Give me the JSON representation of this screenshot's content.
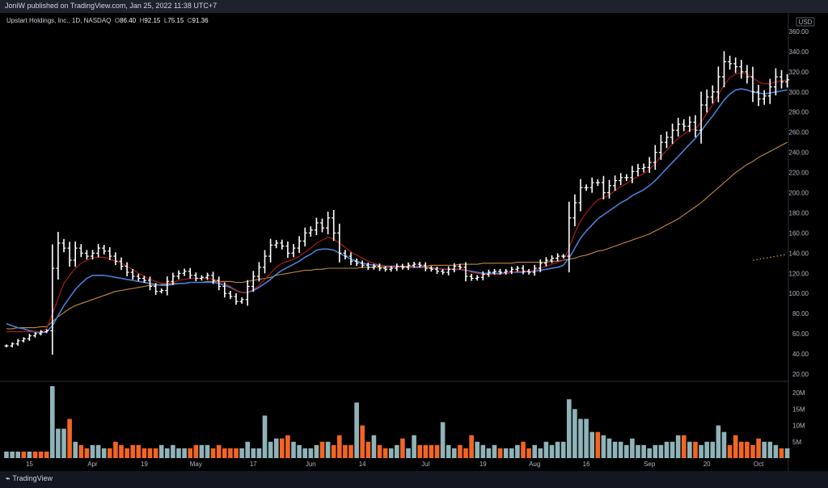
{
  "header": {
    "published_text": "JoniW published on TradingView.com, Jan 25, 2022 11:38 UTC+7"
  },
  "legend": {
    "symbol": "Upstart Holdings, Inc., 1D, NASDAQ",
    "open_label": "O",
    "open": "86.40",
    "high_label": "H",
    "high": "92.15",
    "low_label": "L",
    "low": "75.15",
    "close_label": "C",
    "close": "91.36"
  },
  "currency_badge": "USD",
  "footer": {
    "brand": "TradingView",
    "brand_icon": "tradingview-logo-icon"
  },
  "colors": {
    "background": "#000000",
    "bar": "#ffffff",
    "ema_short": "#b71c1c",
    "ema_mid": "#4a7fd4",
    "sma_long": "#c28a3c",
    "volume_up": "#8fb3b8",
    "volume_down": "#f26522",
    "axis_text": "#b2b5be"
  },
  "chart_data": {
    "type": "ohlc",
    "title": "Upstart Holdings, Inc., 1D, NASDAQ",
    "ylim": [
      20,
      380
    ],
    "y_ticks": [
      "380.00",
      "360.00",
      "340.00",
      "320.00",
      "300.00",
      "280.00",
      "260.00",
      "240.00",
      "220.00",
      "200.00",
      "180.00",
      "160.00",
      "140.00",
      "120.00",
      "100.00",
      "80.00",
      "60.00",
      "40.00",
      "20.00"
    ],
    "y_tick_values": [
      380,
      360,
      340,
      320,
      300,
      280,
      260,
      240,
      220,
      200,
      180,
      160,
      140,
      120,
      100,
      80,
      60,
      40,
      20
    ],
    "x_ticks": [
      {
        "label": "15",
        "index": 4
      },
      {
        "label": "Apr",
        "index": 15
      },
      {
        "label": "19",
        "index": 24
      },
      {
        "label": "May",
        "index": 33
      },
      {
        "label": "17",
        "index": 43
      },
      {
        "label": "Jun",
        "index": 53
      },
      {
        "label": "14",
        "index": 62
      },
      {
        "label": "Jul",
        "index": 73
      },
      {
        "label": "19",
        "index": 83
      },
      {
        "label": "Aug",
        "index": 92
      },
      {
        "label": "16",
        "index": 101
      },
      {
        "label": "Sep",
        "index": 112
      },
      {
        "label": "20",
        "index": 122
      },
      {
        "label": "Oct",
        "index": 131
      }
    ],
    "close": [
      48,
      50,
      53,
      55,
      58,
      60,
      62,
      63,
      125,
      150,
      145,
      133,
      145,
      140,
      137,
      140,
      145,
      142,
      137,
      132,
      127,
      121,
      117,
      115,
      113,
      107,
      102,
      103,
      112,
      117,
      120,
      122,
      118,
      115,
      116,
      118,
      113,
      107,
      100,
      97,
      92,
      94,
      107,
      117,
      126,
      137,
      148,
      150,
      147,
      140,
      145,
      152,
      160,
      163,
      170,
      165,
      175,
      160,
      140,
      137,
      132,
      130,
      128,
      126,
      127,
      125,
      124,
      125,
      127,
      126,
      128,
      129,
      128,
      125,
      124,
      122,
      121,
      124,
      127,
      126,
      117,
      115,
      116,
      119,
      121,
      122,
      121,
      122,
      124,
      125,
      122,
      121,
      125,
      130,
      133,
      135,
      137,
      137,
      175,
      190,
      205,
      205,
      210,
      210,
      200,
      207,
      212,
      215,
      215,
      221,
      224,
      225,
      230,
      240,
      250,
      255,
      262,
      268,
      266,
      270,
      262,
      287,
      295,
      300,
      315,
      330,
      328,
      325,
      320,
      315,
      300,
      293,
      296,
      305,
      315,
      310,
      312
    ],
    "ohlc_note": "Each bar drawn from close with estimated high/low range",
    "ema_short": [
      62,
      62,
      62,
      62,
      62,
      62,
      62,
      65,
      80,
      95,
      110,
      118,
      125,
      130,
      133,
      135,
      136,
      136,
      134,
      132,
      130,
      127,
      124,
      120,
      117,
      114,
      112,
      110,
      110,
      111,
      113,
      114,
      115,
      115,
      115,
      115,
      114,
      112,
      110,
      107,
      103,
      101,
      101,
      104,
      108,
      114,
      120,
      126,
      130,
      132,
      134,
      137,
      141,
      145,
      150,
      153,
      156,
      154,
      150,
      146,
      141,
      138,
      135,
      132,
      130,
      128,
      127,
      126,
      126,
      126,
      126,
      127,
      127,
      126,
      126,
      125,
      124,
      124,
      124,
      124,
      123,
      121,
      120,
      119,
      119,
      119,
      119,
      120,
      121,
      122,
      122,
      122,
      123,
      125,
      127,
      129,
      131,
      133,
      145,
      160,
      172,
      180,
      187,
      193,
      195,
      198,
      202,
      206,
      209,
      213,
      216,
      219,
      223,
      229,
      236,
      242,
      248,
      254,
      258,
      262,
      263,
      270,
      279,
      287,
      297,
      307,
      314,
      318,
      319,
      318,
      314,
      310,
      308,
      308,
      310,
      311,
      312
    ],
    "ema_mid": [
      70,
      68,
      66,
      65,
      63,
      62,
      61,
      62,
      68,
      78,
      88,
      96,
      104,
      110,
      115,
      118,
      118,
      118,
      117,
      116,
      115,
      114,
      113,
      112,
      111,
      110,
      109,
      108,
      108,
      109,
      110,
      110,
      111,
      111,
      111,
      111,
      111,
      110,
      108,
      106,
      103,
      101,
      101,
      103,
      106,
      110,
      114,
      119,
      123,
      126,
      129,
      132,
      136,
      139,
      143,
      144,
      144,
      143,
      140,
      137,
      134,
      132,
      130,
      129,
      128,
      128,
      127,
      127,
      127,
      126,
      126,
      126,
      126,
      126,
      125,
      125,
      124,
      124,
      124,
      124,
      123,
      122,
      121,
      120,
      120,
      120,
      120,
      120,
      121,
      121,
      121,
      122,
      122,
      123,
      124,
      125,
      126,
      128,
      135,
      145,
      155,
      162,
      168,
      174,
      178,
      182,
      186,
      190,
      193,
      197,
      200,
      203,
      207,
      212,
      218,
      224,
      230,
      236,
      242,
      248,
      254,
      261,
      269,
      276,
      284,
      292,
      298,
      302,
      303,
      302,
      300,
      299,
      298,
      299,
      300,
      301,
      302
    ],
    "sma_long": [
      65,
      65,
      66,
      66,
      66,
      66,
      67,
      67,
      72,
      77,
      81,
      85,
      88,
      90,
      92,
      94,
      96,
      98,
      100,
      102,
      103,
      104,
      105,
      106,
      107,
      108,
      108,
      109,
      109,
      110,
      110,
      110,
      111,
      111,
      111,
      112,
      112,
      112,
      112,
      112,
      111,
      111,
      112,
      113,
      114,
      115,
      116,
      118,
      119,
      120,
      121,
      122,
      123,
      123,
      124,
      124,
      125,
      125,
      125,
      125,
      125,
      125,
      126,
      126,
      126,
      126,
      126,
      126,
      127,
      127,
      127,
      127,
      127,
      127,
      128,
      128,
      128,
      128,
      128,
      129,
      129,
      129,
      129,
      130,
      130,
      130,
      130,
      130,
      130,
      131,
      131,
      131,
      131,
      131,
      131,
      132,
      132,
      133,
      134,
      135,
      137,
      138,
      140,
      142,
      143,
      145,
      147,
      149,
      151,
      153,
      155,
      157,
      159,
      162,
      165,
      168,
      171,
      174,
      178,
      182,
      186,
      190,
      195,
      200,
      205,
      210,
      215,
      220,
      224,
      228,
      231,
      235,
      238,
      241,
      244,
      247,
      250
    ],
    "volume_ylim": [
      0,
      22
    ],
    "volume_ticks": [
      "20M",
      "15M",
      "10M",
      "5M"
    ],
    "volume_tick_values": [
      20,
      15,
      10,
      5
    ],
    "volume": [
      2,
      2,
      2,
      2,
      2,
      2,
      2,
      2,
      22,
      9,
      9,
      12,
      5,
      4,
      3,
      4,
      4,
      3,
      3,
      5,
      4,
      3,
      4,
      4,
      3,
      3,
      3,
      4,
      3,
      4,
      3,
      3,
      3,
      4,
      4,
      4,
      3,
      4,
      3,
      3,
      3,
      3,
      5,
      3,
      3,
      13,
      5,
      6,
      6,
      7,
      5,
      4,
      3,
      3,
      4,
      5,
      5,
      4,
      7,
      4,
      4,
      17,
      10,
      5,
      7,
      4,
      3,
      3,
      4,
      6,
      3,
      7,
      4,
      4,
      4,
      4,
      11,
      4,
      3,
      4,
      3,
      7,
      5,
      4,
      3,
      4,
      3,
      3,
      3,
      4,
      5,
      3,
      4,
      3,
      5,
      4,
      5,
      5,
      18,
      15,
      12,
      12,
      8,
      8,
      7,
      6,
      5,
      5,
      4,
      6,
      4,
      4,
      3,
      4,
      4,
      5,
      5,
      7,
      7,
      5,
      5,
      4,
      5,
      5,
      10,
      8,
      4,
      7,
      5,
      5,
      4,
      6,
      5,
      5,
      4,
      3,
      3
    ],
    "volume_up": [
      1,
      1,
      1,
      0,
      1,
      0,
      0,
      0,
      1,
      1,
      1,
      0,
      1,
      0,
      0,
      1,
      1,
      1,
      0,
      0,
      0,
      0,
      0,
      0,
      0,
      0,
      0,
      1,
      1,
      1,
      1,
      1,
      0,
      0,
      1,
      1,
      0,
      0,
      0,
      0,
      0,
      1,
      1,
      1,
      1,
      1,
      1,
      1,
      0,
      0,
      1,
      1,
      1,
      1,
      1,
      0,
      1,
      0,
      0,
      0,
      0,
      1,
      0,
      0,
      1,
      0,
      0,
      1,
      1,
      0,
      1,
      1,
      0,
      0,
      0,
      0,
      1,
      1,
      1,
      0,
      0,
      0,
      1,
      1,
      1,
      1,
      0,
      1,
      1,
      1,
      0,
      0,
      1,
      1,
      1,
      1,
      1,
      1,
      1,
      1,
      1,
      1,
      1,
      0,
      1,
      1,
      1,
      1,
      1,
      1,
      1,
      1,
      1,
      1,
      1,
      1,
      1,
      1,
      0,
      1,
      0,
      1,
      1,
      1,
      1,
      1,
      0,
      0,
      0,
      0,
      0,
      0,
      1,
      1,
      1,
      0,
      1
    ],
    "forecast_dots": [
      [
        136,
        132
      ],
      [
        137,
        134
      ],
      [
        138,
        135
      ],
      [
        139,
        136
      ],
      [
        140,
        138
      ]
    ]
  }
}
